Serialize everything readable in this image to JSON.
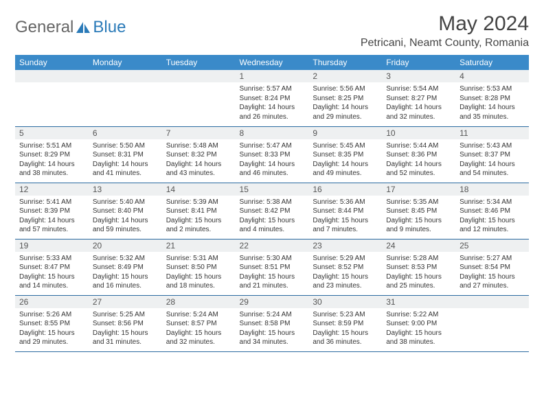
{
  "logo": {
    "text1": "General",
    "text2": "Blue"
  },
  "title": "May 2024",
  "location": "Petricani, Neamt County, Romania",
  "colors": {
    "header_bg": "#3a8ac9",
    "daynum_bg": "#eef0f1",
    "border": "#2a6aa0"
  },
  "weekdays": [
    "Sunday",
    "Monday",
    "Tuesday",
    "Wednesday",
    "Thursday",
    "Friday",
    "Saturday"
  ],
  "weeks": [
    [
      {
        "n": "",
        "sr": "",
        "ss": "",
        "dl": ""
      },
      {
        "n": "",
        "sr": "",
        "ss": "",
        "dl": ""
      },
      {
        "n": "",
        "sr": "",
        "ss": "",
        "dl": ""
      },
      {
        "n": "1",
        "sr": "5:57 AM",
        "ss": "8:24 PM",
        "dl": "14 hours and 26 minutes."
      },
      {
        "n": "2",
        "sr": "5:56 AM",
        "ss": "8:25 PM",
        "dl": "14 hours and 29 minutes."
      },
      {
        "n": "3",
        "sr": "5:54 AM",
        "ss": "8:27 PM",
        "dl": "14 hours and 32 minutes."
      },
      {
        "n": "4",
        "sr": "5:53 AM",
        "ss": "8:28 PM",
        "dl": "14 hours and 35 minutes."
      }
    ],
    [
      {
        "n": "5",
        "sr": "5:51 AM",
        "ss": "8:29 PM",
        "dl": "14 hours and 38 minutes."
      },
      {
        "n": "6",
        "sr": "5:50 AM",
        "ss": "8:31 PM",
        "dl": "14 hours and 41 minutes."
      },
      {
        "n": "7",
        "sr": "5:48 AM",
        "ss": "8:32 PM",
        "dl": "14 hours and 43 minutes."
      },
      {
        "n": "8",
        "sr": "5:47 AM",
        "ss": "8:33 PM",
        "dl": "14 hours and 46 minutes."
      },
      {
        "n": "9",
        "sr": "5:45 AM",
        "ss": "8:35 PM",
        "dl": "14 hours and 49 minutes."
      },
      {
        "n": "10",
        "sr": "5:44 AM",
        "ss": "8:36 PM",
        "dl": "14 hours and 52 minutes."
      },
      {
        "n": "11",
        "sr": "5:43 AM",
        "ss": "8:37 PM",
        "dl": "14 hours and 54 minutes."
      }
    ],
    [
      {
        "n": "12",
        "sr": "5:41 AM",
        "ss": "8:39 PM",
        "dl": "14 hours and 57 minutes."
      },
      {
        "n": "13",
        "sr": "5:40 AM",
        "ss": "8:40 PM",
        "dl": "14 hours and 59 minutes."
      },
      {
        "n": "14",
        "sr": "5:39 AM",
        "ss": "8:41 PM",
        "dl": "15 hours and 2 minutes."
      },
      {
        "n": "15",
        "sr": "5:38 AM",
        "ss": "8:42 PM",
        "dl": "15 hours and 4 minutes."
      },
      {
        "n": "16",
        "sr": "5:36 AM",
        "ss": "8:44 PM",
        "dl": "15 hours and 7 minutes."
      },
      {
        "n": "17",
        "sr": "5:35 AM",
        "ss": "8:45 PM",
        "dl": "15 hours and 9 minutes."
      },
      {
        "n": "18",
        "sr": "5:34 AM",
        "ss": "8:46 PM",
        "dl": "15 hours and 12 minutes."
      }
    ],
    [
      {
        "n": "19",
        "sr": "5:33 AM",
        "ss": "8:47 PM",
        "dl": "15 hours and 14 minutes."
      },
      {
        "n": "20",
        "sr": "5:32 AM",
        "ss": "8:49 PM",
        "dl": "15 hours and 16 minutes."
      },
      {
        "n": "21",
        "sr": "5:31 AM",
        "ss": "8:50 PM",
        "dl": "15 hours and 18 minutes."
      },
      {
        "n": "22",
        "sr": "5:30 AM",
        "ss": "8:51 PM",
        "dl": "15 hours and 21 minutes."
      },
      {
        "n": "23",
        "sr": "5:29 AM",
        "ss": "8:52 PM",
        "dl": "15 hours and 23 minutes."
      },
      {
        "n": "24",
        "sr": "5:28 AM",
        "ss": "8:53 PM",
        "dl": "15 hours and 25 minutes."
      },
      {
        "n": "25",
        "sr": "5:27 AM",
        "ss": "8:54 PM",
        "dl": "15 hours and 27 minutes."
      }
    ],
    [
      {
        "n": "26",
        "sr": "5:26 AM",
        "ss": "8:55 PM",
        "dl": "15 hours and 29 minutes."
      },
      {
        "n": "27",
        "sr": "5:25 AM",
        "ss": "8:56 PM",
        "dl": "15 hours and 31 minutes."
      },
      {
        "n": "28",
        "sr": "5:24 AM",
        "ss": "8:57 PM",
        "dl": "15 hours and 32 minutes."
      },
      {
        "n": "29",
        "sr": "5:24 AM",
        "ss": "8:58 PM",
        "dl": "15 hours and 34 minutes."
      },
      {
        "n": "30",
        "sr": "5:23 AM",
        "ss": "8:59 PM",
        "dl": "15 hours and 36 minutes."
      },
      {
        "n": "31",
        "sr": "5:22 AM",
        "ss": "9:00 PM",
        "dl": "15 hours and 38 minutes."
      },
      {
        "n": "",
        "sr": "",
        "ss": "",
        "dl": ""
      }
    ]
  ]
}
